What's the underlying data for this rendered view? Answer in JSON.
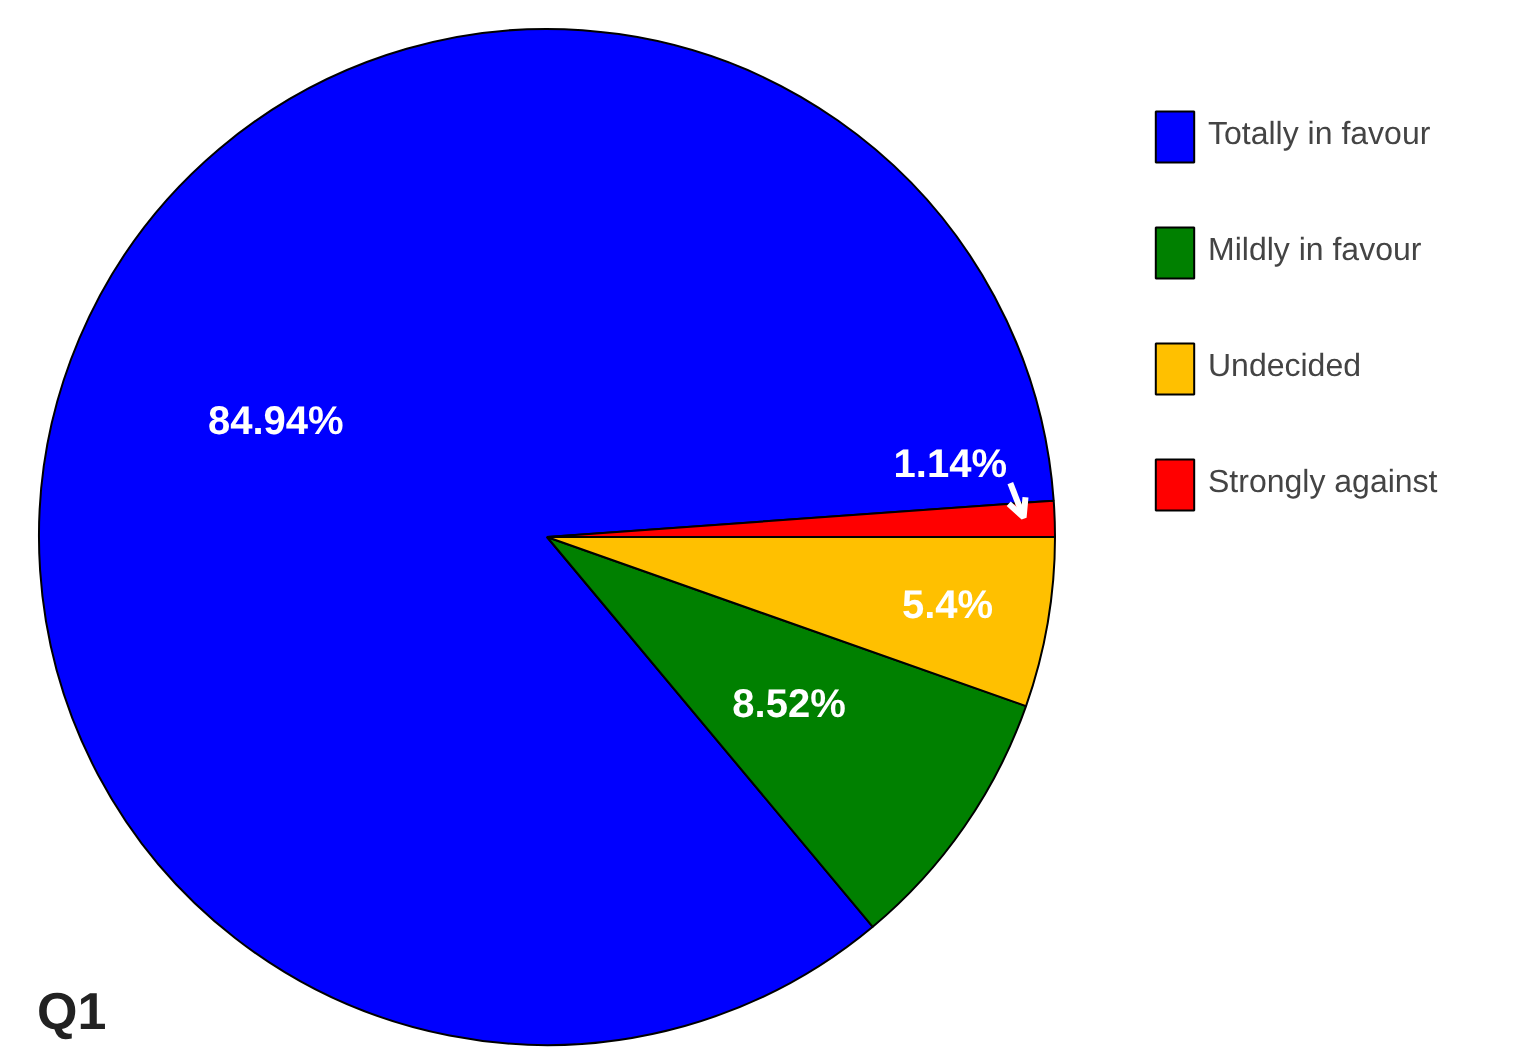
{
  "chart_data": {
    "type": "pie",
    "title": "Q1",
    "categories": [
      "Totally in favour",
      "Mildly in favour",
      "Undecided",
      "Strongly against"
    ],
    "values": [
      84.94,
      8.52,
      5.4,
      1.14
    ],
    "colors": [
      "#0000ff",
      "#008000",
      "#ffc000",
      "#ff0000"
    ],
    "value_labels": [
      "84.94%",
      "8.52%",
      "5.4%",
      "1.14%"
    ],
    "legend": "right"
  }
}
